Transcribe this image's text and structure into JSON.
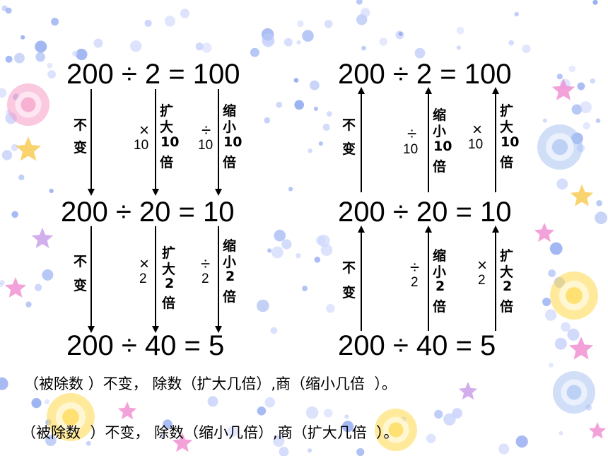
{
  "colors": {
    "text": "#000000",
    "dot_blue": "#8fa8f0",
    "dot_light": "#c8d2fb",
    "star_pink": "#f08bd0",
    "star_yellow": "#f7c84a",
    "star_purple": "#c79ae8",
    "circle_pink": "#f59ac4",
    "circle_yellow": "#ffd84a",
    "circle_blue": "#a9c3f2"
  },
  "left_column": {
    "eq1": "200 ÷ 2 = 100",
    "eq2": "200 ÷ 20 = 10",
    "eq3": "200 ÷ 40 = 5",
    "upper": {
      "dividend_label": [
        "不",
        "变"
      ],
      "divisor_op": "×",
      "divisor_factor": "10",
      "divisor_label": [
        "扩",
        "大",
        "10",
        "倍"
      ],
      "quotient_op": "÷",
      "quotient_factor": "10",
      "quotient_label": [
        "缩",
        "小",
        "10",
        "倍"
      ]
    },
    "lower": {
      "dividend_label": [
        "不",
        "变"
      ],
      "divisor_op": "×",
      "divisor_factor": "2",
      "divisor_label": [
        "扩",
        "大",
        "2",
        "倍"
      ],
      "quotient_op": "÷",
      "quotient_factor": "2",
      "quotient_label": [
        "缩",
        "小",
        "2",
        "倍"
      ]
    }
  },
  "right_column": {
    "eq1": "200 ÷ 2 = 100",
    "eq2": "200 ÷ 20 = 10",
    "eq3": "200 ÷ 40 =  5",
    "upper": {
      "dividend_label": [
        "不",
        "变"
      ],
      "divisor_op": "÷",
      "divisor_factor": "10",
      "divisor_label": [
        "缩",
        "小",
        "10",
        "倍"
      ],
      "quotient_op": "×",
      "quotient_factor": "10",
      "quotient_label": [
        "扩",
        "大",
        "10",
        "倍"
      ]
    },
    "lower": {
      "dividend_label": [
        "不",
        "变"
      ],
      "divisor_op": "÷",
      "divisor_factor": "2",
      "divisor_label": [
        "缩",
        "小",
        "2",
        "倍"
      ],
      "quotient_op": "×",
      "quotient_factor": "2",
      "quotient_label": [
        "扩",
        "大",
        "2",
        "倍"
      ]
    }
  },
  "conclusion_1": "（被除数 ）不变， 除数（扩大几倍）,商（缩小几倍  ）。",
  "conclusion_2": "（被除数  ）不变， 除数（缩小几倍）,商（扩大几倍  ）。"
}
